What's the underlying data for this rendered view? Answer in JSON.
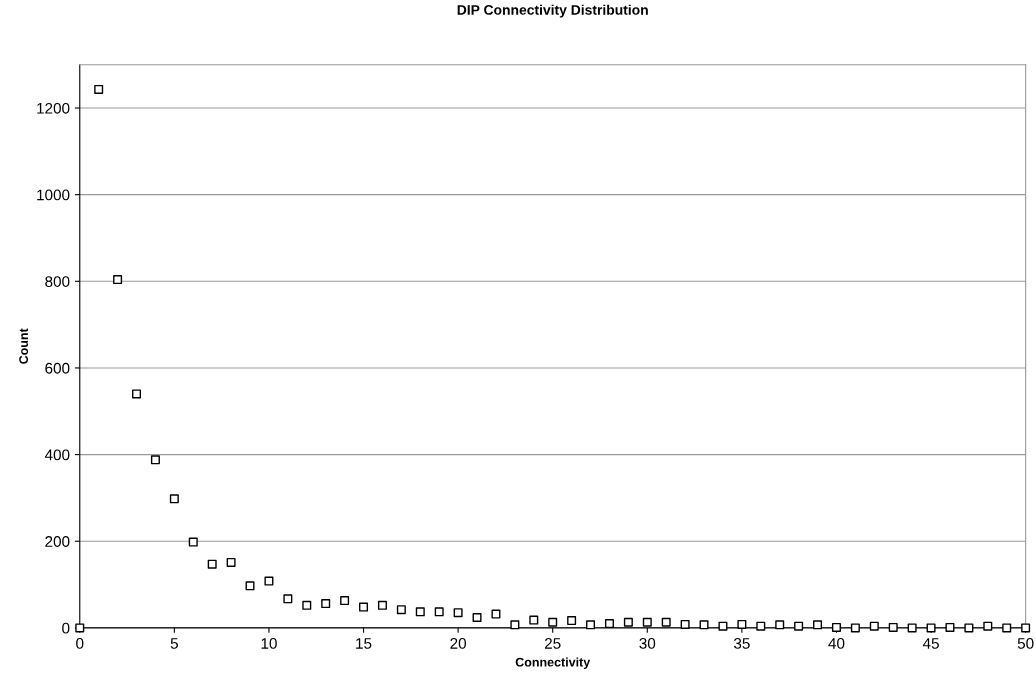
{
  "chart_data": {
    "type": "scatter",
    "title": "DIP Connectivity Distribution",
    "xlabel": "Connectivity",
    "ylabel": "Count",
    "x": [
      0,
      1,
      2,
      3,
      4,
      5,
      6,
      7,
      8,
      9,
      10,
      11,
      12,
      13,
      14,
      15,
      16,
      17,
      18,
      19,
      20,
      21,
      22,
      23,
      24,
      25,
      26,
      27,
      28,
      29,
      30,
      31,
      32,
      33,
      34,
      35,
      36,
      37,
      38,
      39,
      40,
      41,
      42,
      43,
      44,
      45,
      46,
      47,
      48,
      49,
      50
    ],
    "series": [
      {
        "color": "#000000",
        "values": [
          0,
          1243,
          804,
          540,
          388,
          298,
          198,
          147,
          151,
          97,
          108,
          67,
          52,
          56,
          63,
          48,
          52,
          42,
          37,
          37,
          35,
          24,
          32,
          7,
          18,
          13,
          17,
          7,
          10,
          13,
          13,
          13,
          8,
          7,
          4,
          8,
          4,
          7,
          4,
          7,
          1,
          0,
          4,
          1,
          0,
          0,
          1,
          0,
          4,
          0,
          0
        ]
      }
    ],
    "xlim": [
      0,
      50
    ],
    "xticks": [
      0,
      5,
      10,
      15,
      20,
      25,
      30,
      35,
      40,
      45,
      50
    ],
    "ylim": [
      0,
      1300
    ],
    "yticks": [
      0,
      200,
      400,
      600,
      800,
      1000,
      1200
    ],
    "grid": "y",
    "legend": false,
    "marker": "square"
  }
}
